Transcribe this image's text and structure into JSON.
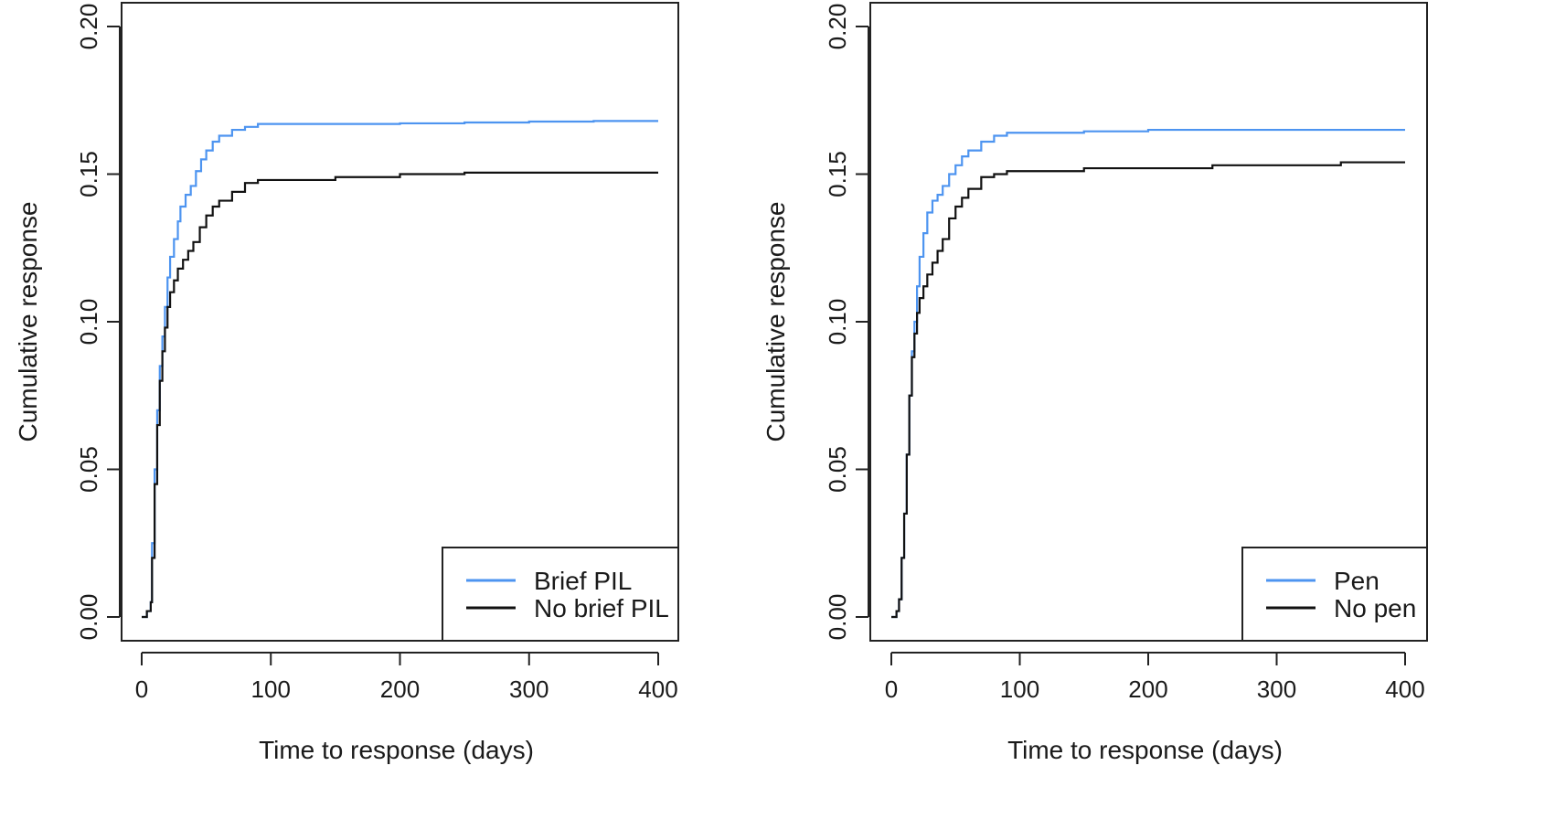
{
  "chart_data": [
    {
      "type": "line",
      "xlabel": "Time to response (days)",
      "ylabel": "Cumulative response",
      "xlim": [
        0,
        400
      ],
      "ylim": [
        0,
        0.2
      ],
      "xticks": [
        0,
        100,
        200,
        300,
        400
      ],
      "yticks": [
        0.0,
        0.05,
        0.1,
        0.15,
        0.2
      ],
      "xtick_labels": [
        "0",
        "100",
        "200",
        "300",
        "400"
      ],
      "ytick_labels": [
        "0.00",
        "0.05",
        "0.10",
        "0.15",
        "0.20"
      ],
      "grid": false,
      "legend_position": "bottom-right",
      "series": [
        {
          "name": "Brief PIL",
          "color": "#4d94f0",
          "x": [
            0,
            4,
            7,
            8,
            10,
            12,
            14,
            16,
            18,
            20,
            22,
            25,
            28,
            30,
            34,
            38,
            42,
            46,
            50,
            55,
            60,
            70,
            80,
            90,
            95,
            100,
            150,
            200,
            250,
            300,
            350,
            400
          ],
          "y": [
            0.0,
            0.002,
            0.005,
            0.025,
            0.05,
            0.07,
            0.085,
            0.095,
            0.105,
            0.115,
            0.122,
            0.128,
            0.134,
            0.139,
            0.143,
            0.146,
            0.151,
            0.155,
            0.158,
            0.161,
            0.163,
            0.165,
            0.166,
            0.167,
            0.167,
            0.167,
            0.167,
            0.1672,
            0.1675,
            0.1678,
            0.168,
            0.168
          ]
        },
        {
          "name": "No brief PIL",
          "color": "#111111",
          "x": [
            0,
            4,
            7,
            8,
            10,
            12,
            14,
            16,
            18,
            20,
            22,
            25,
            28,
            32,
            36,
            40,
            45,
            50,
            55,
            60,
            70,
            80,
            90,
            100,
            150,
            200,
            250,
            300,
            350,
            400
          ],
          "y": [
            0.0,
            0.002,
            0.005,
            0.02,
            0.045,
            0.065,
            0.08,
            0.09,
            0.098,
            0.105,
            0.11,
            0.114,
            0.118,
            0.121,
            0.124,
            0.127,
            0.132,
            0.136,
            0.139,
            0.141,
            0.144,
            0.147,
            0.148,
            0.148,
            0.149,
            0.15,
            0.1505,
            0.1505,
            0.1505,
            0.1505
          ]
        }
      ],
      "legend": [
        "Brief PIL",
        "No brief PIL"
      ]
    },
    {
      "type": "line",
      "xlabel": "Time to response (days)",
      "ylabel": "Cumulative response",
      "xlim": [
        0,
        400
      ],
      "ylim": [
        0,
        0.2
      ],
      "xticks": [
        0,
        100,
        200,
        300,
        400
      ],
      "yticks": [
        0.0,
        0.05,
        0.1,
        0.15,
        0.2
      ],
      "xtick_labels": [
        "0",
        "100",
        "200",
        "300",
        "400"
      ],
      "ytick_labels": [
        "0.00",
        "0.05",
        "0.10",
        "0.15",
        "0.20"
      ],
      "grid": false,
      "legend_position": "bottom-right",
      "series": [
        {
          "name": "Pen",
          "color": "#4d94f0",
          "x": [
            0,
            4,
            6,
            8,
            10,
            12,
            14,
            16,
            18,
            20,
            22,
            25,
            28,
            32,
            36,
            40,
            45,
            50,
            55,
            60,
            70,
            80,
            90,
            100,
            150,
            200,
            250,
            300,
            350,
            400
          ],
          "y": [
            0.0,
            0.002,
            0.006,
            0.02,
            0.035,
            0.055,
            0.075,
            0.09,
            0.1,
            0.112,
            0.122,
            0.13,
            0.137,
            0.141,
            0.143,
            0.146,
            0.15,
            0.153,
            0.156,
            0.158,
            0.161,
            0.163,
            0.164,
            0.164,
            0.1645,
            0.165,
            0.165,
            0.165,
            0.165,
            0.165
          ]
        },
        {
          "name": "No pen",
          "color": "#111111",
          "x": [
            0,
            4,
            6,
            8,
            10,
            12,
            14,
            16,
            18,
            20,
            22,
            25,
            28,
            32,
            36,
            40,
            45,
            50,
            55,
            60,
            70,
            80,
            90,
            100,
            150,
            200,
            250,
            300,
            350,
            400
          ],
          "y": [
            0.0,
            0.002,
            0.006,
            0.02,
            0.035,
            0.055,
            0.075,
            0.088,
            0.096,
            0.103,
            0.108,
            0.112,
            0.116,
            0.12,
            0.124,
            0.128,
            0.135,
            0.139,
            0.142,
            0.145,
            0.149,
            0.15,
            0.151,
            0.151,
            0.152,
            0.152,
            0.153,
            0.153,
            0.154,
            0.154
          ]
        }
      ],
      "legend": [
        "Pen",
        "No pen"
      ]
    }
  ]
}
